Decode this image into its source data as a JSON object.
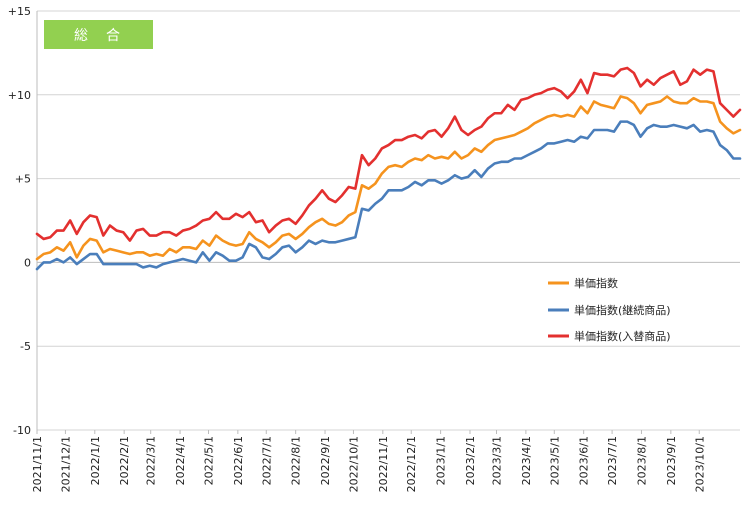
{
  "chart_data": {
    "type": "line",
    "badge_label": "総　合",
    "badge_color": "#92d050",
    "y_axis": {
      "ylim": [
        -10,
        15
      ],
      "ticks": [
        15,
        10,
        5,
        0,
        -5,
        -10
      ],
      "tick_labels": [
        "+15",
        "+10",
        "+5",
        "0",
        "-5",
        "-10"
      ]
    },
    "x_axis": {
      "start_date": "2021/11/1",
      "tick_labels": [
        "2021/11/1",
        "2021/12/1",
        "2022/1/1",
        "2022/2/1",
        "2022/3/1",
        "2022/4/1",
        "2022/5/1",
        "2022/6/1",
        "2022/7/1",
        "2022/8/1",
        "2022/9/1",
        "2022/10/1",
        "2022/11/1",
        "2022/12/1",
        "2023/1/1",
        "2023/2/1",
        "2023/3/1",
        "2023/4/1",
        "2023/5/1",
        "2023/6/1",
        "2023/7/1",
        "2023/8/1",
        "2023/9/1",
        "2023/10/1"
      ]
    },
    "grid": "horizontal",
    "legend_position": "bottom-right",
    "series": [
      {
        "name": "単価指数",
        "color": "#f5931e",
        "values": [
          0.2,
          0.5,
          0.6,
          0.9,
          0.7,
          1.2,
          0.3,
          1.0,
          1.4,
          1.3,
          0.6,
          0.8,
          0.7,
          0.6,
          0.5,
          0.6,
          0.6,
          0.4,
          0.5,
          0.4,
          0.8,
          0.6,
          0.9,
          0.9,
          0.8,
          1.3,
          1.0,
          1.6,
          1.3,
          1.1,
          1.0,
          1.1,
          1.8,
          1.4,
          1.2,
          0.9,
          1.2,
          1.6,
          1.7,
          1.4,
          1.7,
          2.1,
          2.4,
          2.6,
          2.3,
          2.2,
          2.4,
          2.8,
          3.0,
          4.6,
          4.4,
          4.7,
          5.3,
          5.7,
          5.8,
          5.7,
          6.0,
          6.2,
          6.1,
          6.4,
          6.2,
          6.3,
          6.2,
          6.6,
          6.2,
          6.4,
          6.8,
          6.6,
          7.0,
          7.3,
          7.4,
          7.5,
          7.6,
          7.8,
          8.0,
          8.3,
          8.5,
          8.7,
          8.8,
          8.7,
          8.8,
          8.7,
          9.3,
          8.9,
          9.6,
          9.4,
          9.3,
          9.2,
          9.9,
          9.8,
          9.5,
          8.9,
          9.4,
          9.5,
          9.6,
          9.9,
          9.6,
          9.5,
          9.5,
          9.8,
          9.6,
          9.6,
          9.5,
          8.4,
          8.0,
          7.7,
          7.9
        ]
      },
      {
        "name": "単価指数(継続商品)",
        "color": "#4a7ebb",
        "values": [
          -0.4,
          0.0,
          0.0,
          0.2,
          0.0,
          0.3,
          -0.1,
          0.2,
          0.5,
          0.5,
          -0.1,
          -0.1,
          -0.1,
          -0.1,
          -0.1,
          -0.1,
          -0.3,
          -0.2,
          -0.3,
          -0.1,
          0.0,
          0.1,
          0.2,
          0.1,
          0.0,
          0.6,
          0.1,
          0.6,
          0.4,
          0.1,
          0.1,
          0.3,
          1.1,
          0.9,
          0.3,
          0.2,
          0.5,
          0.9,
          1.0,
          0.6,
          0.9,
          1.3,
          1.1,
          1.3,
          1.2,
          1.2,
          1.3,
          1.4,
          1.5,
          3.2,
          3.1,
          3.5,
          3.8,
          4.3,
          4.3,
          4.3,
          4.5,
          4.8,
          4.6,
          4.9,
          4.9,
          4.7,
          4.9,
          5.2,
          5.0,
          5.1,
          5.5,
          5.1,
          5.6,
          5.9,
          6.0,
          6.0,
          6.2,
          6.2,
          6.4,
          6.6,
          6.8,
          7.1,
          7.1,
          7.2,
          7.3,
          7.2,
          7.5,
          7.4,
          7.9,
          7.9,
          7.9,
          7.8,
          8.4,
          8.4,
          8.2,
          7.5,
          8.0,
          8.2,
          8.1,
          8.1,
          8.2,
          8.1,
          8.0,
          8.2,
          7.8,
          7.9,
          7.8,
          7.0,
          6.7,
          6.2,
          6.2
        ]
      },
      {
        "name": "単価指数(入替商品)",
        "color": "#e3302f",
        "values": [
          1.7,
          1.4,
          1.5,
          1.9,
          1.9,
          2.5,
          1.7,
          2.4,
          2.8,
          2.7,
          1.6,
          2.2,
          1.9,
          1.8,
          1.3,
          1.9,
          2.0,
          1.6,
          1.6,
          1.8,
          1.8,
          1.6,
          1.9,
          2.0,
          2.2,
          2.5,
          2.6,
          3.0,
          2.6,
          2.6,
          2.9,
          2.7,
          3.0,
          2.4,
          2.5,
          1.8,
          2.2,
          2.5,
          2.6,
          2.3,
          2.8,
          3.4,
          3.8,
          4.3,
          3.8,
          3.6,
          4.0,
          4.5,
          4.4,
          6.4,
          5.8,
          6.2,
          6.8,
          7.0,
          7.3,
          7.3,
          7.5,
          7.6,
          7.4,
          7.8,
          7.9,
          7.5,
          8.0,
          8.7,
          7.9,
          7.6,
          7.9,
          8.1,
          8.6,
          8.9,
          8.9,
          9.4,
          9.1,
          9.7,
          9.8,
          10.0,
          10.1,
          10.3,
          10.4,
          10.2,
          9.8,
          10.2,
          10.9,
          10.1,
          11.3,
          11.2,
          11.2,
          11.1,
          11.5,
          11.6,
          11.3,
          10.5,
          10.9,
          10.6,
          11.0,
          11.2,
          11.4,
          10.6,
          10.8,
          11.5,
          11.2,
          11.5,
          11.4,
          9.5,
          9.1,
          8.7,
          9.1
        ]
      }
    ]
  }
}
